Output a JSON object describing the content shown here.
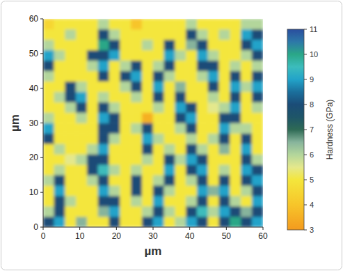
{
  "chart_data": {
    "type": "heatmap",
    "xlabel": "µm",
    "ylabel": "µm",
    "xlim": [
      0,
      60
    ],
    "ylim": [
      0,
      60
    ],
    "xticks": [
      0,
      10,
      20,
      30,
      40,
      50,
      60
    ],
    "yticks": [
      0,
      10,
      20,
      30,
      40,
      50,
      60
    ],
    "x": [
      1.5,
      4.5,
      7.5,
      10.5,
      13.5,
      16.5,
      19.5,
      22.5,
      25.5,
      28.5,
      31.5,
      34.5,
      37.5,
      40.5,
      43.5,
      46.5,
      49.5,
      52.5,
      55.5,
      58.5
    ],
    "y": [
      1.5,
      4.5,
      7.5,
      10.5,
      13.5,
      16.5,
      19.5,
      22.5,
      25.5,
      28.5,
      31.5,
      34.5,
      37.5,
      40.5,
      43.5,
      46.5,
      49.5,
      52.5,
      55.5,
      58.5
    ],
    "values": [
      [
        8,
        9,
        5,
        6.5,
        5,
        5,
        8,
        5,
        5,
        8,
        9,
        5,
        6,
        9,
        8,
        5,
        8,
        10,
        8,
        9
      ],
      [
        6,
        8,
        5,
        5,
        5,
        6.5,
        9,
        5,
        5,
        6,
        8,
        6,
        5,
        8,
        9.5,
        6,
        9,
        8,
        6.5,
        8
      ],
      [
        5,
        8,
        6,
        5,
        5,
        8,
        8,
        5,
        6,
        5,
        9,
        5,
        5,
        6,
        8,
        5,
        8,
        6,
        5,
        9
      ],
      [
        5,
        9,
        5,
        5,
        5,
        9,
        6,
        5,
        8,
        5,
        8,
        6,
        5,
        5,
        9,
        6.5,
        9,
        5,
        6,
        8
      ],
      [
        6,
        8,
        5,
        5,
        6,
        8,
        5,
        5,
        8,
        5,
        6,
        8,
        5,
        6,
        8,
        5,
        8,
        5,
        8,
        9
      ],
      [
        5,
        6,
        5,
        5,
        8,
        9.5,
        6,
        5,
        6,
        5,
        5,
        9,
        5,
        8,
        9,
        5,
        6,
        5,
        9,
        8
      ],
      [
        5,
        5,
        5.5,
        6,
        8,
        8,
        5,
        5,
        5,
        6,
        5,
        8,
        6,
        9,
        8,
        5,
        5,
        5,
        8,
        6
      ],
      [
        5,
        6,
        5,
        5,
        6,
        9,
        5,
        5,
        5,
        8,
        5,
        6,
        5,
        8,
        6,
        5,
        6.5,
        5,
        9,
        5
      ],
      [
        8,
        5,
        5,
        5,
        5,
        8,
        6,
        5,
        5,
        9,
        6,
        5,
        5,
        6,
        5,
        6,
        8,
        5,
        8,
        5
      ],
      [
        9,
        5,
        5,
        5,
        5,
        8,
        8,
        5,
        6,
        8,
        5,
        5,
        6,
        8,
        5,
        5,
        9,
        6,
        6,
        5
      ],
      [
        6,
        5,
        5,
        6,
        5,
        9,
        8,
        5,
        5,
        3.5,
        5,
        5,
        8,
        9,
        5,
        5,
        8,
        8,
        5,
        5
      ],
      [
        5,
        5,
        6,
        8,
        5,
        8,
        6,
        5,
        5,
        5,
        6,
        5,
        9,
        8,
        5,
        5.5,
        6,
        9,
        5,
        6
      ],
      [
        5,
        6,
        8,
        9,
        5,
        6,
        5,
        5,
        6,
        5,
        8,
        5,
        8,
        5,
        5,
        6,
        5,
        8,
        5,
        8
      ],
      [
        5,
        5,
        8,
        6,
        5,
        5,
        5,
        6,
        8,
        5,
        9,
        5,
        6.5,
        5,
        5,
        8,
        5,
        9,
        6,
        9
      ],
      [
        6,
        5,
        5,
        5,
        5,
        8,
        5,
        8,
        9,
        5,
        8,
        6,
        5,
        5,
        6,
        9,
        5,
        8,
        5,
        8
      ],
      [
        8,
        5,
        5,
        5,
        6,
        9,
        5,
        6,
        8,
        5,
        6,
        8,
        5,
        5,
        8,
        8,
        5,
        6,
        5,
        6
      ],
      [
        9,
        6,
        5,
        5,
        8,
        8,
        9,
        5,
        5,
        5,
        5,
        9,
        6,
        5,
        9,
        6,
        5,
        5,
        6,
        8
      ],
      [
        6,
        5,
        5,
        5,
        5,
        10,
        8,
        5,
        5,
        6,
        5,
        8,
        5,
        6.5,
        8,
        5,
        5,
        5,
        8,
        9
      ],
      [
        5,
        5,
        6,
        5,
        5,
        8,
        6,
        5,
        5,
        5,
        5,
        5,
        5,
        8,
        6,
        5,
        6,
        5,
        9,
        8
      ],
      [
        4.5,
        5,
        5,
        5,
        5,
        6,
        5,
        5,
        4,
        5,
        5,
        5,
        5,
        6,
        5,
        5,
        5,
        5,
        6,
        6
      ]
    ],
    "colorbar_label": "Hardness (GPa)",
    "colorbar_range": [
      3,
      11
    ],
    "colorbar_ticks": [
      3,
      4,
      5,
      6,
      7,
      8,
      9,
      10,
      11
    ]
  }
}
